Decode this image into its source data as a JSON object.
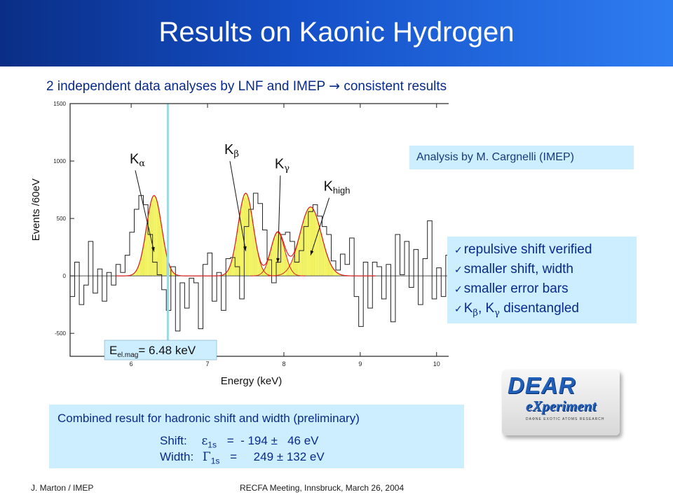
{
  "slide": {
    "title": "Results on Kaonic Hydrogen",
    "subtitle": "2 independent data analyses by LNF and IMEP",
    "subtitle_arrow": "→",
    "subtitle_suffix": "consistent results"
  },
  "analysis_note": "Analysis by M. Cargnelli (IMEP)",
  "bullets": [
    {
      "text": "repulsive shift verified"
    },
    {
      "text": "smaller shift, width"
    },
    {
      "text": "smaller error bars"
    },
    {
      "pre": "K",
      "sub1": "β",
      "mid": ", K",
      "sub2": "γ",
      "post": " disentangled"
    }
  ],
  "result": {
    "heading": "Combined result for hadronic shift and width (preliminary)",
    "shift_label": "Shift:",
    "shift_symbol": "ε",
    "shift_sub": "1s",
    "shift_value": "=  - 194 ±   46 eV",
    "width_label": "Width:",
    "width_symbol": "Γ",
    "width_sub": "1s",
    "width_value": "=     249 ± 132 eV"
  },
  "logo": {
    "line1": "DEAR",
    "line2": "eXperiment",
    "line3": "DAΦNE EXOTIC ATOMS RESEARCH"
  },
  "footer": {
    "left": "J. Marton / IMEP",
    "center": "RECFA Meeting, Innsbruck, March 26, 2004"
  },
  "colors": {
    "title_bar_start": "#0a2e86",
    "title_bar_end": "#2e7df0",
    "text_blue": "#0a2a8a",
    "box_fill": "#cceeff",
    "peak_fill": "#ffff66",
    "fit_line": "#dd2222",
    "marker_line": "#9ed8e6"
  },
  "chart_data": {
    "type": "histogram",
    "xlabel": "Energy (keV)",
    "ylabel": "Events /60eV",
    "xlim": [
      5.2,
      10.25
    ],
    "ylim": [
      -700,
      1500
    ],
    "xticks": [
      6,
      7,
      8,
      9,
      10
    ],
    "yticks": [
      -500,
      0,
      500,
      1000,
      1500
    ],
    "zero_line": true,
    "bin_width_keV": 0.06,
    "x_start": 5.2,
    "histogram_values": [
      -180,
      120,
      -250,
      -80,
      300,
      -150,
      60,
      -220,
      30,
      -80,
      100,
      30,
      180,
      380,
      580,
      700,
      620,
      360,
      120,
      10,
      -120,
      -300,
      80,
      -480,
      -60,
      -280,
      -20,
      -60,
      -460,
      100,
      200,
      -220,
      30,
      -300,
      150,
      160,
      80,
      -200,
      430,
      580,
      720,
      630,
      400,
      140,
      -60,
      120,
      360,
      380,
      300,
      120,
      220,
      430,
      560,
      620,
      520,
      430,
      360,
      130,
      50,
      190,
      100,
      330,
      -180,
      -440,
      120,
      -280,
      120,
      80,
      -200,
      100,
      -400,
      360,
      10,
      300,
      -100,
      230,
      -250,
      150,
      480,
      -200,
      70,
      -180,
      180
    ],
    "peaks": [
      {
        "label": "Kα",
        "base": "K",
        "sub": "α",
        "center": 6.3,
        "amplitude": 700,
        "sigma": 0.1
      },
      {
        "label": "Kβ",
        "base": "K",
        "sub": "β",
        "center": 7.5,
        "amplitude": 720,
        "sigma": 0.1
      },
      {
        "label": "Kγ",
        "base": "K",
        "sub": "γ",
        "center": 7.92,
        "amplitude": 380,
        "sigma": 0.09
      },
      {
        "label": "Khigh",
        "base": "K",
        "sub": "high",
        "center": 8.35,
        "amplitude": 600,
        "sigma": 0.14
      }
    ],
    "label_positions": [
      {
        "peak": 0,
        "text_x": 5.98,
        "text_y": 980
      },
      {
        "peak": 1,
        "text_x": 7.22,
        "text_y": 1060
      },
      {
        "peak": 2,
        "text_x": 7.88,
        "text_y": 935
      },
      {
        "peak": 3,
        "text_x": 8.52,
        "text_y": 740
      }
    ],
    "marker": {
      "energy": 6.48,
      "label_base": "E",
      "label_sub": "el.mag",
      "label_value": "= 6.48 keV"
    }
  }
}
